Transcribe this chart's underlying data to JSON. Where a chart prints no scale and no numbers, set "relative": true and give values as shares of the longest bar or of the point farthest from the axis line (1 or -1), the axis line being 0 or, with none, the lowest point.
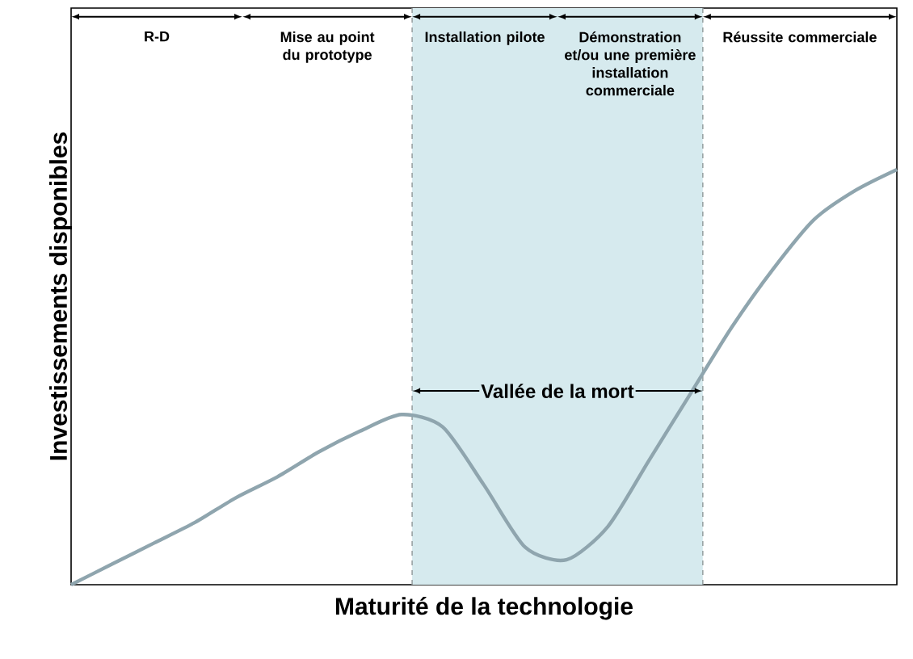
{
  "chart_data": {
    "type": "line",
    "relative": true,
    "xlabel": "Maturité de la technologie",
    "ylabel": "Investissements disponibles",
    "categories": [
      null,
      null,
      null,
      null,
      null,
      null,
      null,
      null,
      null,
      null,
      null,
      null,
      null,
      null,
      null,
      null,
      null,
      null,
      null,
      null,
      null
    ],
    "series": [
      {
        "color": "#8fa5ae",
        "values": [
          0,
          0.05,
          0.1,
          0.15,
          0.21,
          0.26,
          0.32,
          0.37,
          0.41,
          0.38,
          0.24,
          0.09,
          0.06,
          0.14,
          0.3,
          0.46,
          0.62,
          0.76,
          0.88,
          0.95,
          1
        ]
      }
    ],
    "annotations": [
      "R-D",
      "Mise au point du prototype",
      "Installation pilote",
      "Démonstration et/ou une première installation commerciale",
      "Réussite commerciale",
      "Vallée de la mort"
    ],
    "tick_labels": false,
    "marker": "none",
    "line_style": "solid"
  }
}
